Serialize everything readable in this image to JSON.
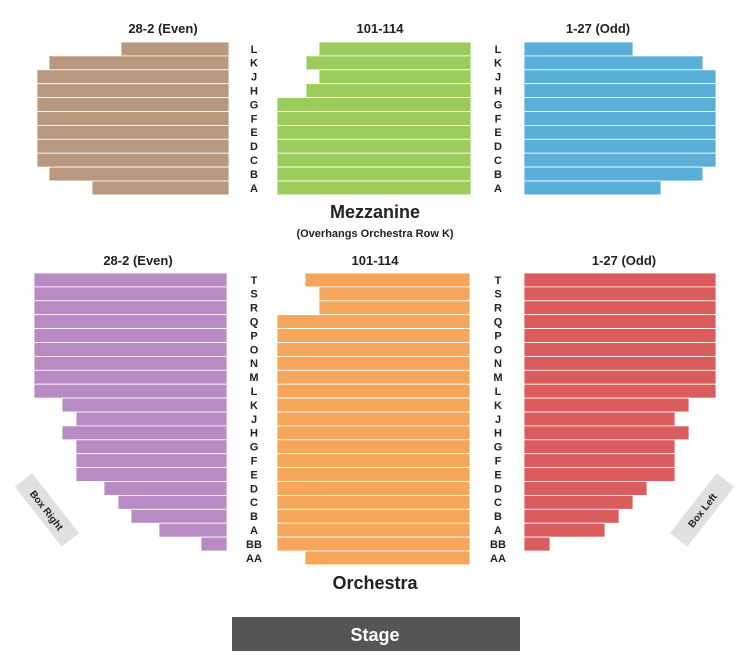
{
  "colors": {
    "mezz_left": "#b8997e",
    "mezz_center": "#9ccc5c",
    "mezz_right": "#5aafd9",
    "orch_left": "#b98bc4",
    "orch_center": "#f5a65a",
    "orch_right": "#db5c5c",
    "stage": "#555555",
    "box": "#e0e0e0",
    "row_line": "#ffffff"
  },
  "mezzanine": {
    "title": "Mezzanine",
    "subtitle": "(Overhangs Orchestra Row K)",
    "rows": [
      "L",
      "K",
      "J",
      "H",
      "G",
      "F",
      "E",
      "D",
      "C",
      "B",
      "A"
    ],
    "sections": {
      "left": {
        "label": "28-2 (Even)"
      },
      "center": {
        "label": "101-114"
      },
      "right": {
        "label": "1-27 (Odd)"
      }
    }
  },
  "orchestra": {
    "title": "Orchestra",
    "rows": [
      "T",
      "S",
      "R",
      "Q",
      "P",
      "O",
      "N",
      "M",
      "L",
      "K",
      "J",
      "H",
      "G",
      "F",
      "E",
      "D",
      "C",
      "B",
      "A",
      "BB",
      "AA"
    ],
    "sections": {
      "left": {
        "label": "28-2 (Even)"
      },
      "center": {
        "label": "101-114"
      },
      "right": {
        "label": "1-27 (Odd)"
      }
    }
  },
  "stage": {
    "label": "Stage"
  },
  "boxes": {
    "right": "Box Right",
    "left": "Box Left"
  }
}
